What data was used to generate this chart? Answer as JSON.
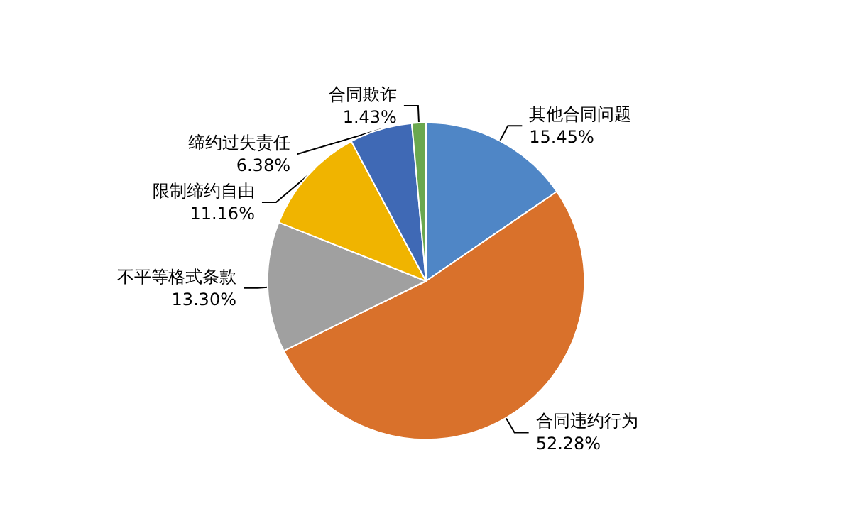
{
  "chart_data": {
    "type": "pie",
    "categories": [
      "其他合同问题",
      "合同违约行为",
      "不平等格式条款",
      "限制缔约自由",
      "缔约过失责任",
      "合同欺诈"
    ],
    "values": [
      15.45,
      52.28,
      13.3,
      11.16,
      6.38,
      1.43
    ],
    "value_labels": [
      "15.45%",
      "52.28%",
      "13.30%",
      "11.16%",
      "6.38%",
      "1.43%"
    ],
    "colors": [
      "#4f86c6",
      "#d9712b",
      "#a0a0a0",
      "#f0b400",
      "#3f69b5",
      "#6aa84f"
    ],
    "legend": false
  }
}
